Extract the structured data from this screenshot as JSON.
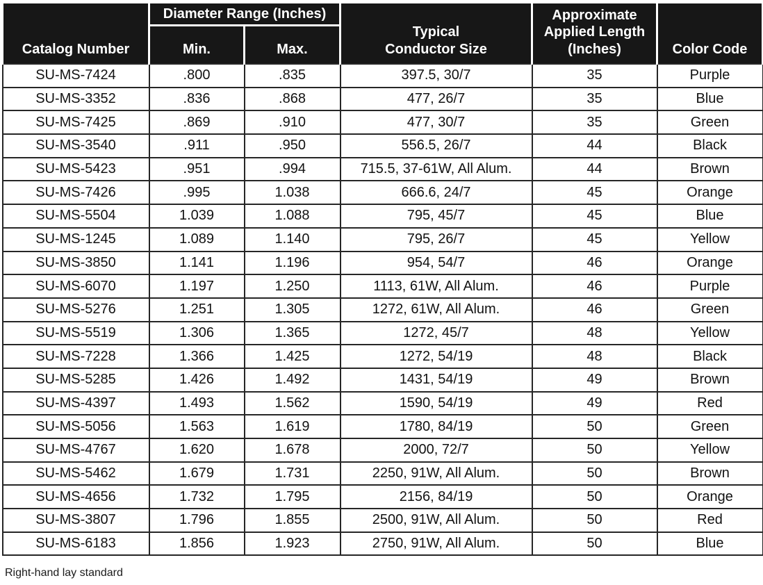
{
  "table": {
    "headers": {
      "catalog_number": "Catalog Number",
      "diameter_range_group": "Diameter Range (Inches)",
      "min": "Min.",
      "max": "Max.",
      "conductor_size": "Typical\nConductor Size",
      "applied_length": "Approximate\nApplied Length\n(Inches)",
      "color_code": "Color Code"
    },
    "rows": [
      {
        "catalog": "SU-MS-7424",
        "min": ".800",
        "max": ".835",
        "conductor": "397.5, 30/7",
        "length": "35",
        "color": "Purple"
      },
      {
        "catalog": "SU-MS-3352",
        "min": ".836",
        "max": ".868",
        "conductor": "477, 26/7",
        "length": "35",
        "color": "Blue"
      },
      {
        "catalog": "SU-MS-7425",
        "min": ".869",
        "max": ".910",
        "conductor": "477, 30/7",
        "length": "35",
        "color": "Green"
      },
      {
        "catalog": "SU-MS-3540",
        "min": ".911",
        "max": ".950",
        "conductor": "556.5, 26/7",
        "length": "44",
        "color": "Black"
      },
      {
        "catalog": "SU-MS-5423",
        "min": ".951",
        "max": ".994",
        "conductor": "715.5, 37-61W, All Alum.",
        "length": "44",
        "color": "Brown"
      },
      {
        "catalog": "SU-MS-7426",
        "min": ".995",
        "max": "1.038",
        "conductor": "666.6, 24/7",
        "length": "45",
        "color": "Orange"
      },
      {
        "catalog": "SU-MS-5504",
        "min": "1.039",
        "max": "1.088",
        "conductor": "795, 45/7",
        "length": "45",
        "color": "Blue"
      },
      {
        "catalog": "SU-MS-1245",
        "min": "1.089",
        "max": "1.140",
        "conductor": "795, 26/7",
        "length": "45",
        "color": "Yellow"
      },
      {
        "catalog": "SU-MS-3850",
        "min": "1.141",
        "max": "1.196",
        "conductor": "954, 54/7",
        "length": "46",
        "color": "Orange"
      },
      {
        "catalog": "SU-MS-6070",
        "min": "1.197",
        "max": "1.250",
        "conductor": "1113, 61W, All Alum.",
        "length": "46",
        "color": "Purple"
      },
      {
        "catalog": "SU-MS-5276",
        "min": "1.251",
        "max": "1.305",
        "conductor": "1272, 61W, All Alum.",
        "length": "46",
        "color": "Green"
      },
      {
        "catalog": "SU-MS-5519",
        "min": "1.306",
        "max": "1.365",
        "conductor": "1272, 45/7",
        "length": "48",
        "color": "Yellow"
      },
      {
        "catalog": "SU-MS-7228",
        "min": "1.366",
        "max": "1.425",
        "conductor": "1272, 54/19",
        "length": "48",
        "color": "Black"
      },
      {
        "catalog": "SU-MS-5285",
        "min": "1.426",
        "max": "1.492",
        "conductor": "1431, 54/19",
        "length": "49",
        "color": "Brown"
      },
      {
        "catalog": "SU-MS-4397",
        "min": "1.493",
        "max": "1.562",
        "conductor": "1590, 54/19",
        "length": "49",
        "color": "Red"
      },
      {
        "catalog": "SU-MS-5056",
        "min": "1.563",
        "max": "1.619",
        "conductor": "1780, 84/19",
        "length": "50",
        "color": "Green"
      },
      {
        "catalog": "SU-MS-4767",
        "min": "1.620",
        "max": "1.678",
        "conductor": "2000, 72/7",
        "length": "50",
        "color": "Yellow"
      },
      {
        "catalog": "SU-MS-5462",
        "min": "1.679",
        "max": "1.731",
        "conductor": "2250, 91W, All Alum.",
        "length": "50",
        "color": "Brown"
      },
      {
        "catalog": "SU-MS-4656",
        "min": "1.732",
        "max": "1.795",
        "conductor": "2156, 84/19",
        "length": "50",
        "color": "Orange"
      },
      {
        "catalog": "SU-MS-3807",
        "min": "1.796",
        "max": "1.855",
        "conductor": "2500, 91W, All Alum.",
        "length": "50",
        "color": "Red"
      },
      {
        "catalog": "SU-MS-6183",
        "min": "1.856",
        "max": "1.923",
        "conductor": "2750, 91W, All Alum.",
        "length": "50",
        "color": "Blue"
      }
    ]
  },
  "footer_note": "Right-hand lay standard",
  "colors": {
    "header_bg": "#171717",
    "header_text": "#ffffff",
    "body_text": "#121212",
    "border": "#262626"
  }
}
